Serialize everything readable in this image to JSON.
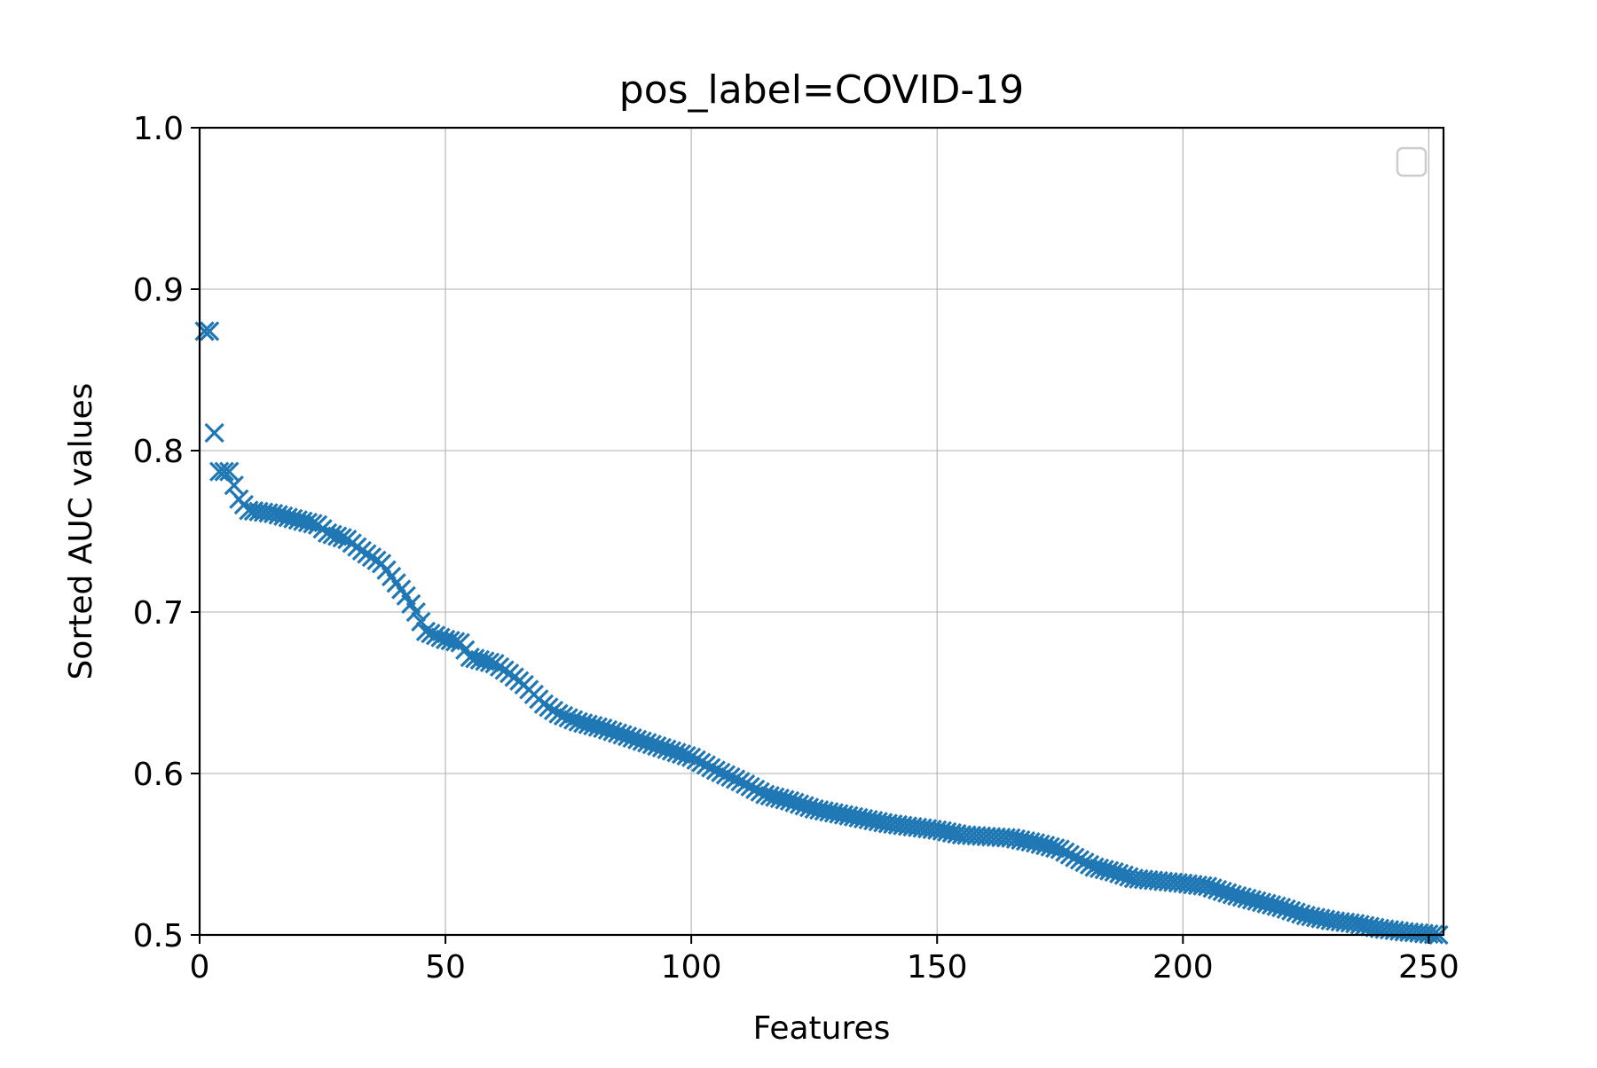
{
  "chart_data": {
    "type": "scatter",
    "title": "pos_label=COVID-19",
    "xlabel": "Features",
    "ylabel": "Sorted AUC values",
    "xlim": [
      0,
      253
    ],
    "ylim": [
      0.5,
      1.0
    ],
    "x_ticks": [
      0,
      50,
      100,
      150,
      200,
      250
    ],
    "y_ticks": [
      0.5,
      0.6,
      0.7,
      0.8,
      0.9,
      1.0
    ],
    "x_tick_labels": [
      "0",
      "50",
      "100",
      "150",
      "200",
      "250"
    ],
    "y_tick_labels": [
      "0.5",
      "0.6",
      "0.7",
      "0.8",
      "0.9",
      "1.0"
    ],
    "grid": true,
    "legend": {
      "placement": "upper right",
      "entries": []
    },
    "marker": "x",
    "series": [
      {
        "color": "#1f77b4",
        "anchors": [
          [
            1,
            0.874
          ],
          [
            2,
            0.874
          ],
          [
            3,
            0.811
          ],
          [
            4,
            0.787
          ],
          [
            5,
            0.787
          ],
          [
            6,
            0.787
          ],
          [
            8,
            0.77
          ],
          [
            10,
            0.763
          ],
          [
            15,
            0.761
          ],
          [
            20,
            0.757
          ],
          [
            24,
            0.754
          ],
          [
            26,
            0.749
          ],
          [
            30,
            0.745
          ],
          [
            33,
            0.738
          ],
          [
            37,
            0.73
          ],
          [
            40,
            0.718
          ],
          [
            42,
            0.71
          ],
          [
            44,
            0.7
          ],
          [
            46,
            0.688
          ],
          [
            50,
            0.683
          ],
          [
            53,
            0.681
          ],
          [
            55,
            0.672
          ],
          [
            60,
            0.668
          ],
          [
            63,
            0.662
          ],
          [
            66,
            0.655
          ],
          [
            70,
            0.643
          ],
          [
            73,
            0.637
          ],
          [
            77,
            0.632
          ],
          [
            82,
            0.628
          ],
          [
            90,
            0.62
          ],
          [
            95,
            0.615
          ],
          [
            100,
            0.61
          ],
          [
            105,
            0.602
          ],
          [
            110,
            0.595
          ],
          [
            115,
            0.587
          ],
          [
            120,
            0.583
          ],
          [
            125,
            0.578
          ],
          [
            130,
            0.575
          ],
          [
            135,
            0.572
          ],
          [
            140,
            0.569
          ],
          [
            150,
            0.565
          ],
          [
            155,
            0.562
          ],
          [
            165,
            0.56
          ],
          [
            170,
            0.557
          ],
          [
            175,
            0.553
          ],
          [
            178,
            0.548
          ],
          [
            182,
            0.542
          ],
          [
            186,
            0.539
          ],
          [
            190,
            0.535
          ],
          [
            200,
            0.532
          ],
          [
            205,
            0.53
          ],
          [
            210,
            0.525
          ],
          [
            215,
            0.521
          ],
          [
            220,
            0.517
          ],
          [
            225,
            0.512
          ],
          [
            230,
            0.509
          ],
          [
            235,
            0.507
          ],
          [
            240,
            0.504
          ],
          [
            245,
            0.502
          ],
          [
            252,
            0.5
          ]
        ]
      }
    ]
  }
}
